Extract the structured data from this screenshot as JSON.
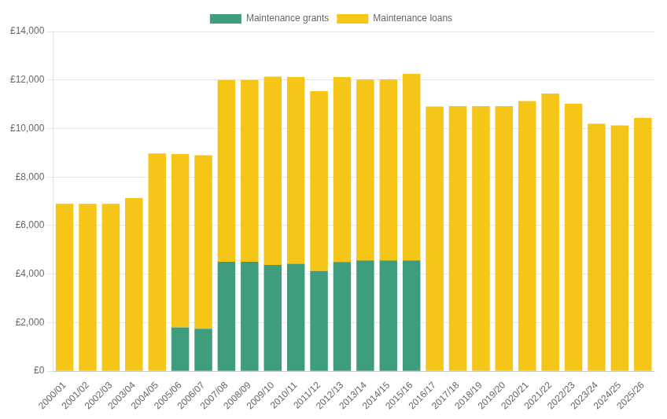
{
  "chart_data": {
    "type": "bar",
    "stacked": true,
    "categories": [
      "2000/01",
      "2001/02",
      "2002/03",
      "2003/04",
      "2004/05",
      "2005/06",
      "2006/07",
      "2007/08",
      "2008/09",
      "2009/10",
      "2010/11",
      "2011/12",
      "2012/13",
      "2013/14",
      "2014/15",
      "2015/16",
      "2016/17",
      "2017/18",
      "2018/19",
      "2019/20",
      "2020/21",
      "2021/22",
      "2022/23",
      "2023/24",
      "2024/25",
      "2025/26"
    ],
    "series": [
      {
        "name": "Maintenance grants",
        "color": "#3d9d7e",
        "values": [
          0,
          0,
          0,
          0,
          0,
          1800,
          1750,
          4510,
          4510,
          4375,
          4430,
          4125,
          4500,
          4565,
          4565,
          4565,
          0,
          0,
          0,
          0,
          0,
          0,
          0,
          0,
          0,
          0
        ]
      },
      {
        "name": "Maintenance loans",
        "color": "#f5c518",
        "values": [
          6895,
          6895,
          6895,
          7135,
          8970,
          7150,
          7150,
          7490,
          7490,
          7760,
          7690,
          7415,
          7620,
          7460,
          7460,
          7685,
          10910,
          10920,
          10925,
          10925,
          11135,
          11440,
          11020,
          10195,
          10130,
          10440
        ]
      }
    ],
    "ylim": [
      0,
      14000
    ],
    "yticks": [
      {
        "value": 0,
        "label": "£0"
      },
      {
        "value": 2000,
        "label": "£2,000"
      },
      {
        "value": 4000,
        "label": "£4,000"
      },
      {
        "value": 6000,
        "label": "£6,000"
      },
      {
        "value": 8000,
        "label": "£8,000"
      },
      {
        "value": 10000,
        "label": "£10,000"
      },
      {
        "value": 12000,
        "label": "£12,000"
      },
      {
        "value": 14000,
        "label": "£14,000"
      }
    ],
    "grid": true,
    "legend": "top"
  }
}
